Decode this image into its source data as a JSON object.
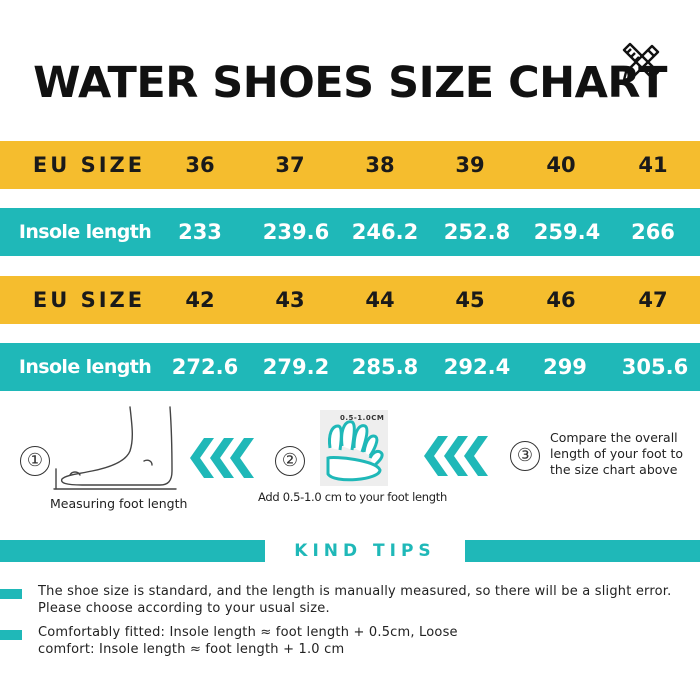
{
  "title": "WATER SHOES SIZE CHART",
  "icon": "pencil-ruler-icon",
  "colors": {
    "yellow": "#f5bd2e",
    "teal": "#1fb8b8"
  },
  "table": {
    "rows": [
      {
        "label": "EU SIZE",
        "values": [
          "36",
          "37",
          "38",
          "39",
          "40",
          "41"
        ]
      },
      {
        "label": "Insole length",
        "values": [
          "233",
          "239.6",
          "246.2",
          "252.8",
          "259.4",
          "266"
        ]
      },
      {
        "label": "EU SIZE",
        "values": [
          "42",
          "43",
          "44",
          "45",
          "46",
          "47"
        ]
      },
      {
        "label": "Insole length",
        "values": [
          "272.6",
          "279.2",
          "285.8",
          "292.4",
          "299",
          "305.6"
        ]
      }
    ]
  },
  "steps": [
    {
      "number": "①",
      "caption": "Measuring foot length"
    },
    {
      "number": "②",
      "caption": "Add 0.5-1.0 cm to your foot length",
      "tag": "0.5-1.0CM"
    },
    {
      "number": "③",
      "caption": "Compare the overall length of your foot to the size chart above"
    }
  ],
  "kind_tips": {
    "heading": "KIND TIPS",
    "items": [
      "The shoe size is standard, and the length is manually measured, so there will be a slight error. Please choose according to your usual size.",
      "Comfortably fitted: Insole length ≈ foot length + 0.5cm, Loose comfort: Insole length ≈ foot length + 1.0 cm"
    ]
  }
}
